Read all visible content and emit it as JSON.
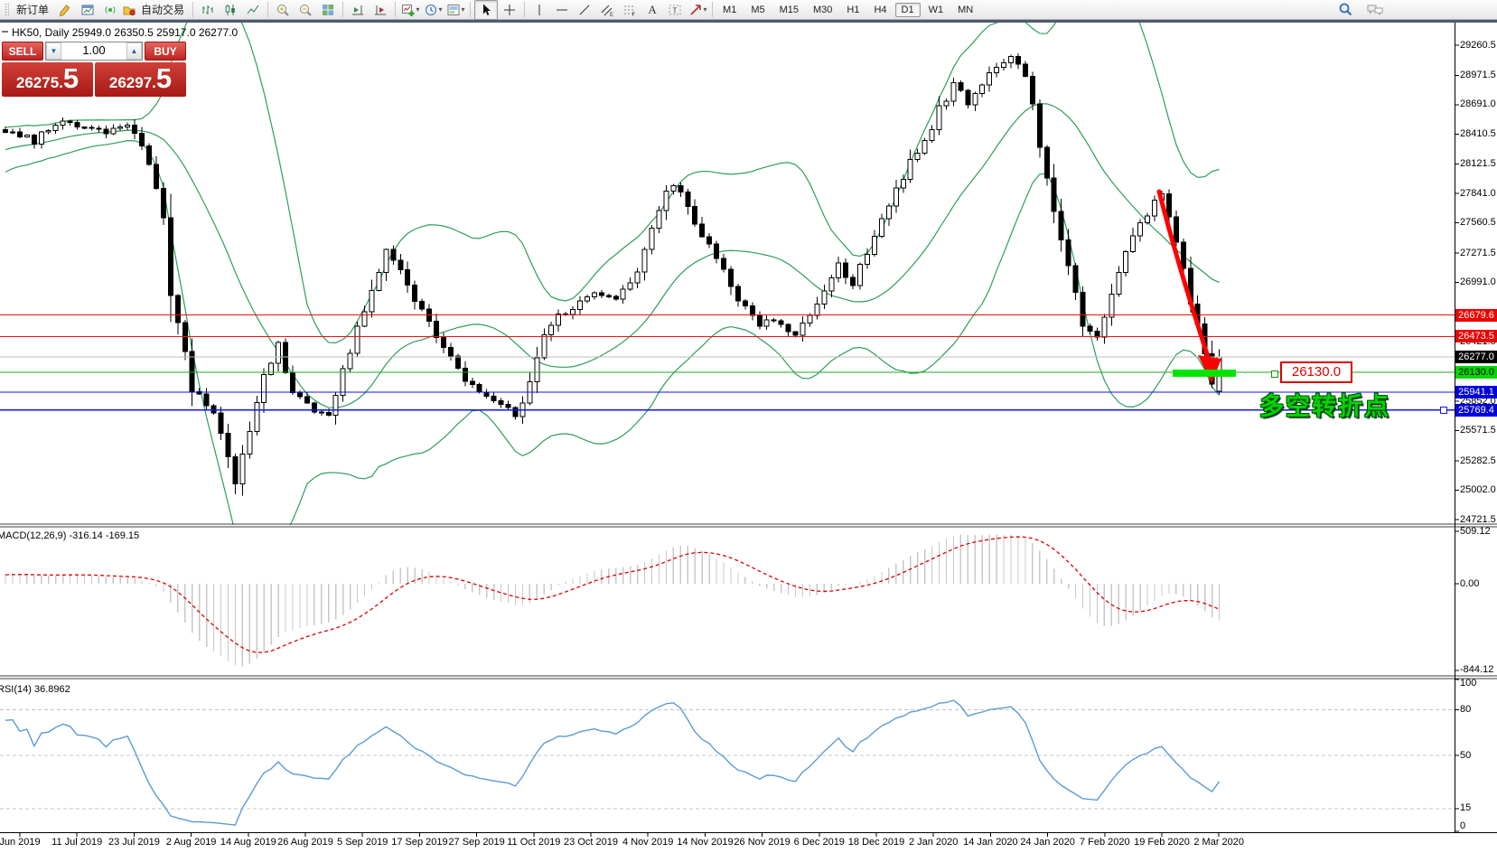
{
  "toolbar": {
    "new_order_label": "新订单",
    "auto_trading_label": "自动交易",
    "timeframes": [
      "M1",
      "M5",
      "M15",
      "M30",
      "H1",
      "H4",
      "D1",
      "W1",
      "MN"
    ],
    "active_timeframe": "D1"
  },
  "chart": {
    "title": "HK50, Daily  25949.0 26350.5 25917.0 26277.0",
    "symbol": "HK50",
    "period": "Daily",
    "open": "25949.0",
    "high": "26350.5",
    "low": "25917.0",
    "close": "26277.0"
  },
  "trade_panel": {
    "sell_label": "SELL",
    "buy_label": "BUY",
    "volume": "1.00",
    "sell_price": "26275.5",
    "buy_price": "26297.5",
    "sell_price_main": "26275.",
    "sell_price_big": "5",
    "buy_price_main": "26297.",
    "buy_price_big": "5"
  },
  "annotations": {
    "price_callout": "26130.0",
    "note": "多空转折点"
  },
  "indicator_labels": {
    "macd": "MACD(12,26,9) -316.14 -169.15",
    "rsi": "RSI(14) 36.8962"
  },
  "axes": {
    "price_labels": [
      {
        "text": "29260.5",
        "value": 29260.5
      },
      {
        "text": "28971.5",
        "value": 28971.5
      },
      {
        "text": "28691.0",
        "value": 28691.0
      },
      {
        "text": "28410.5",
        "value": 28410.5
      },
      {
        "text": "28121.5",
        "value": 28121.5
      },
      {
        "text": "27841.0",
        "value": 27841.0
      },
      {
        "text": "27560.5",
        "value": 27560.5
      },
      {
        "text": "27271.5",
        "value": 27271.5
      },
      {
        "text": "26991.0",
        "value": 26991.0
      },
      {
        "text": "26421.5",
        "value": 26421.5
      },
      {
        "text": "25852.0",
        "value": 25852.0
      },
      {
        "text": "25571.5",
        "value": 25571.5
      },
      {
        "text": "25282.5",
        "value": 25282.5
      },
      {
        "text": "25002.0",
        "value": 25002.0
      },
      {
        "text": "24721.5",
        "value": 24721.5
      }
    ],
    "price_badges": [
      {
        "text": "26679.6",
        "value": 26679.6,
        "bg": "#ee0000",
        "fg": "#ffffff"
      },
      {
        "text": "26473.5",
        "value": 26473.5,
        "bg": "#ee0000",
        "fg": "#ffffff"
      },
      {
        "text": "26277.0",
        "value": 26277.0,
        "bg": "#000000",
        "fg": "#ffffff"
      },
      {
        "text": "26130.0",
        "value": 26130.0,
        "bg": "#00d800",
        "fg": "#000000"
      },
      {
        "text": "25941.1",
        "value": 25941.1,
        "bg": "#0000dd",
        "fg": "#ffffff"
      },
      {
        "text": "25769.4",
        "value": 25769.4,
        "bg": "#0000dd",
        "fg": "#ffffff"
      }
    ],
    "macd_labels": [
      {
        "text": "509.12",
        "value": 509.12
      },
      {
        "text": "0.00",
        "value": 0
      },
      {
        "text": "-844.12",
        "value": -844.12
      }
    ],
    "rsi_labels": [
      {
        "text": "100",
        "value": 100
      },
      {
        "text": "80",
        "value": 80
      },
      {
        "text": "50",
        "value": 50
      },
      {
        "text": "15",
        "value": 15
      },
      {
        "text": "0",
        "value": 0
      }
    ],
    "time_labels": [
      "Jun 2019",
      "11 Jul 2019",
      "23 Jul 2019",
      "2 Aug 2019",
      "14 Aug 2019",
      "26 Aug 2019",
      "5 Sep 2019",
      "17 Sep 2019",
      "27 Sep 2019",
      "11 Oct 2019",
      "23 Oct 2019",
      "4 Nov 2019",
      "14 Nov 2019",
      "26 Nov 2019",
      "6 Dec 2019",
      "18 Dec 2019",
      "2 Jan 2020",
      "14 Jan 2020",
      "24 Jan 2020",
      "7 Feb 2020",
      "19 Feb 2020",
      "2 Mar 2020"
    ]
  },
  "chart_data": {
    "type": "candlestick",
    "symbol": "HK50",
    "timeframe": "Daily",
    "title": "HK50, Daily",
    "x_range": [
      "Jun 2019",
      "2 Mar 2020"
    ],
    "ylim": [
      24721.5,
      29260.5
    ],
    "grid": false,
    "bars_total": 170,
    "last_bar": {
      "open": 25949.0,
      "high": 26350.5,
      "low": 25917.0,
      "close": 26277.0
    },
    "price_path": [
      [
        0,
        28430
      ],
      [
        4,
        28350
      ],
      [
        8,
        28520
      ],
      [
        13,
        28430
      ],
      [
        17,
        28500
      ],
      [
        20,
        28150
      ],
      [
        22,
        27600
      ],
      [
        23,
        26900
      ],
      [
        25,
        26350
      ],
      [
        26,
        25950
      ],
      [
        29,
        25750
      ],
      [
        32,
        25050
      ],
      [
        34,
        25600
      ],
      [
        36,
        26100
      ],
      [
        38,
        26380
      ],
      [
        40,
        25950
      ],
      [
        43,
        25780
      ],
      [
        45,
        25700
      ],
      [
        47,
        26150
      ],
      [
        49,
        26550
      ],
      [
        51,
        26950
      ],
      [
        53,
        27300
      ],
      [
        55,
        27100
      ],
      [
        57,
        26850
      ],
      [
        59,
        26580
      ],
      [
        61,
        26380
      ],
      [
        63,
        26150
      ],
      [
        66,
        25950
      ],
      [
        69,
        25820
      ],
      [
        71,
        25700
      ],
      [
        73,
        26000
      ],
      [
        75,
        26500
      ],
      [
        77,
        26650
      ],
      [
        80,
        26780
      ],
      [
        82,
        26900
      ],
      [
        85,
        26850
      ],
      [
        88,
        27100
      ],
      [
        90,
        27500
      ],
      [
        92,
        27850
      ],
      [
        93,
        27950
      ],
      [
        95,
        27700
      ],
      [
        97,
        27450
      ],
      [
        99,
        27200
      ],
      [
        101,
        26950
      ],
      [
        103,
        26750
      ],
      [
        105,
        26550
      ],
      [
        107,
        26650
      ],
      [
        110,
        26500
      ],
      [
        112,
        26700
      ],
      [
        114,
        26900
      ],
      [
        116,
        27150
      ],
      [
        118,
        26980
      ],
      [
        120,
        27280
      ],
      [
        122,
        27580
      ],
      [
        124,
        27880
      ],
      [
        126,
        28150
      ],
      [
        128,
        28320
      ],
      [
        130,
        28650
      ],
      [
        132,
        28880
      ],
      [
        134,
        28720
      ],
      [
        136,
        28920
      ],
      [
        138,
        29080
      ],
      [
        140,
        29160
      ],
      [
        142,
        28950
      ],
      [
        143,
        28680
      ],
      [
        144,
        28250
      ],
      [
        146,
        27700
      ],
      [
        148,
        27150
      ],
      [
        150,
        26600
      ],
      [
        152,
        26480
      ],
      [
        154,
        26900
      ],
      [
        156,
        27250
      ],
      [
        158,
        27550
      ],
      [
        160,
        27750
      ],
      [
        161,
        27850
      ],
      [
        162,
        27600
      ],
      [
        163,
        27350
      ],
      [
        164,
        27100
      ],
      [
        165,
        26800
      ],
      [
        166,
        26550
      ],
      [
        167,
        26300
      ],
      [
        168,
        26050
      ],
      [
        169,
        26277
      ]
    ],
    "levels": [
      {
        "price": 26679.6,
        "color": "#ee1111",
        "width": 1.2
      },
      {
        "price": 26473.5,
        "color": "#ee1111",
        "width": 1.2
      },
      {
        "price": 26277.0,
        "color": "#bdbdbd",
        "width": 1
      },
      {
        "price": 26130.0,
        "color": "#22aa22",
        "width": 1.2
      },
      {
        "price": 25941.1,
        "color": "#1515dd",
        "width": 1.3
      },
      {
        "price": 25769.4,
        "color": "#1515dd",
        "width": 1.3
      }
    ],
    "indicators": {
      "bollinger": {
        "period": 20,
        "deviation": 2,
        "color": "#2e9e5b"
      },
      "macd": {
        "fast": 12,
        "slow": 26,
        "signal": 9,
        "current": [
          -316.14,
          -169.15
        ],
        "range": [
          -844.12,
          509.12
        ],
        "histogram_color": "#c8c8c8",
        "signal_color": "#dd0000"
      },
      "rsi": {
        "period": 14,
        "current": 36.8962,
        "levels": [
          15,
          50,
          80
        ],
        "range": [
          0,
          100
        ],
        "color": "#5b9bd5"
      }
    }
  }
}
